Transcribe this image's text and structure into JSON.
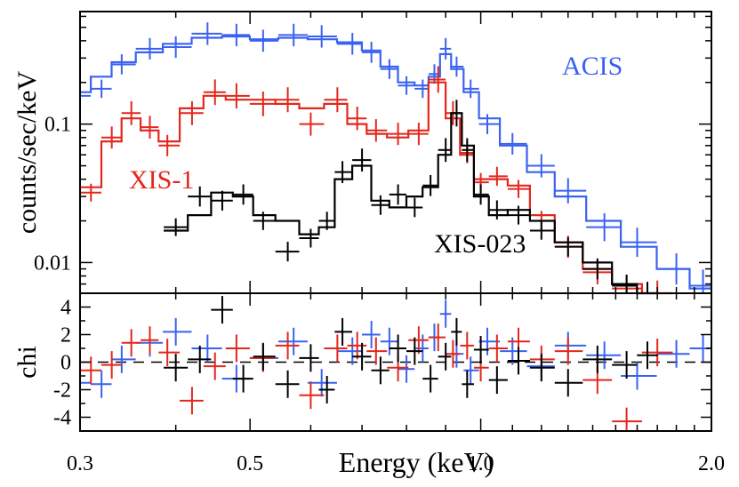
{
  "chart_data": {
    "type": "line",
    "x_scale": "log",
    "xlabel": "Energy (keV)",
    "x_ticks": [
      0.3,
      0.5,
      1.0,
      2.0
    ],
    "x_tick_labels": [
      "0.3",
      "0.5",
      "1.0",
      "2.0"
    ],
    "xlim": [
      0.3,
      2.0
    ],
    "panels": [
      {
        "name": "spectrum",
        "y_scale": "log",
        "ylabel": "counts/sec/keV",
        "ylim": [
          0.006,
          0.65
        ],
        "y_ticks": [
          0.01,
          0.1
        ],
        "y_tick_labels": [
          "0.01",
          "0.1"
        ],
        "series": [
          {
            "name": "ACIS",
            "color": "#3a62f0",
            "label_position": "right",
            "x": [
              0.3,
              0.32,
              0.34,
              0.37,
              0.4,
              0.44,
              0.48,
              0.52,
              0.57,
              0.62,
              0.68,
              0.72,
              0.76,
              0.8,
              0.84,
              0.87,
              0.9,
              0.93,
              0.97,
              1.02,
              1.1,
              1.2,
              1.3,
              1.45,
              1.6,
              1.8,
              1.95
            ],
            "model": [
              0.17,
              0.22,
              0.28,
              0.33,
              0.38,
              0.42,
              0.43,
              0.41,
              0.42,
              0.41,
              0.39,
              0.34,
              0.26,
              0.2,
              0.19,
              0.22,
              0.32,
              0.25,
              0.17,
              0.11,
              0.07,
              0.045,
              0.03,
              0.02,
              0.013,
              0.009,
              0.0065
            ],
            "data": [
              0.16,
              0.18,
              0.27,
              0.35,
              0.36,
              0.45,
              0.44,
              0.4,
              0.44,
              0.43,
              0.38,
              0.33,
              0.25,
              0.19,
              0.18,
              0.23,
              0.35,
              0.26,
              0.18,
              0.1,
              0.072,
              0.05,
              0.033,
              0.018,
              0.014,
              0.009,
              0.0068
            ]
          },
          {
            "name": "XIS-1",
            "color": "#e3271d",
            "label_position": "left",
            "x": [
              0.31,
              0.33,
              0.35,
              0.37,
              0.39,
              0.42,
              0.45,
              0.48,
              0.52,
              0.56,
              0.6,
              0.65,
              0.69,
              0.73,
              0.78,
              0.83,
              0.88,
              0.92,
              0.96,
              1.0,
              1.05,
              1.12,
              1.2,
              1.3,
              1.42,
              1.55,
              1.7
            ],
            "model": [
              0.035,
              0.075,
              0.11,
              0.09,
              0.075,
              0.13,
              0.16,
              0.15,
              0.15,
              0.14,
              0.13,
              0.14,
              0.1,
              0.085,
              0.08,
              0.09,
              0.2,
              0.11,
              0.06,
              0.04,
              0.04,
              0.036,
              0.022,
              0.014,
              0.009,
              0.007,
              0.006
            ],
            "data": [
              0.032,
              0.08,
              0.12,
              0.095,
              0.07,
              0.12,
              0.17,
              0.16,
              0.14,
              0.15,
              0.1,
              0.15,
              0.11,
              0.09,
              0.085,
              0.085,
              0.21,
              0.12,
              0.062,
              0.038,
              0.042,
              0.034,
              0.02,
              0.013,
              0.0085,
              0.0065,
              0.006
            ]
          },
          {
            "name": "XIS-023",
            "color": "#000000",
            "label_position": "center-right",
            "x": [
              0.4,
              0.43,
              0.46,
              0.49,
              0.52,
              0.56,
              0.6,
              0.63,
              0.66,
              0.7,
              0.74,
              0.78,
              0.82,
              0.86,
              0.9,
              0.93,
              0.96,
              1.0,
              1.05,
              1.12,
              1.2,
              1.3,
              1.42,
              1.55,
              1.65
            ],
            "model": [
              0.017,
              0.022,
              0.032,
              0.03,
              0.022,
              0.02,
              0.016,
              0.018,
              0.04,
              0.05,
              0.028,
              0.025,
              0.03,
              0.035,
              0.06,
              0.12,
              0.07,
              0.03,
              0.022,
              0.024,
              0.02,
              0.014,
              0.01,
              0.007,
              0.006
            ],
            "data": [
              0.018,
              0.03,
              0.028,
              0.031,
              0.02,
              0.012,
              0.015,
              0.02,
              0.045,
              0.055,
              0.026,
              0.031,
              0.025,
              0.036,
              0.065,
              0.12,
              0.065,
              0.031,
              0.024,
              0.022,
              0.017,
              0.013,
              0.009,
              0.0068,
              0.006
            ]
          }
        ]
      },
      {
        "name": "residuals",
        "y_scale": "linear",
        "ylabel": "chi",
        "ylim": [
          -5,
          5
        ],
        "y_ticks": [
          -4,
          -2,
          0,
          2,
          4
        ],
        "y_tick_labels": [
          "-4",
          "-2",
          "0",
          "2",
          "4"
        ],
        "series": [
          {
            "name": "ACIS",
            "color": "#3a62f0",
            "x": [
              0.3,
              0.32,
              0.34,
              0.37,
              0.4,
              0.44,
              0.48,
              0.52,
              0.57,
              0.62,
              0.68,
              0.72,
              0.76,
              0.8,
              0.84,
              0.87,
              0.9,
              0.93,
              0.97,
              1.02,
              1.1,
              1.2,
              1.3,
              1.45,
              1.6,
              1.8,
              1.95
            ],
            "values": [
              -1.5,
              -1.6,
              0.2,
              1.4,
              2.2,
              1.0,
              -1.2,
              0.3,
              1.5,
              -1.5,
              0.8,
              2.0,
              1.5,
              -0.5,
              1.0,
              1.8,
              3.5,
              0.6,
              -0.6,
              1.5,
              0.8,
              -0.3,
              1.2,
              0.5,
              -1.0,
              0.6,
              1.0
            ]
          },
          {
            "name": "XIS-1",
            "color": "#e3271d",
            "x": [
              0.31,
              0.33,
              0.35,
              0.37,
              0.39,
              0.42,
              0.45,
              0.48,
              0.52,
              0.56,
              0.6,
              0.65,
              0.69,
              0.73,
              0.78,
              0.83,
              0.88,
              0.92,
              0.96,
              1.0,
              1.05,
              1.12,
              1.2,
              1.3,
              1.42,
              1.55,
              1.7
            ],
            "values": [
              -0.6,
              -0.2,
              1.4,
              1.6,
              0.7,
              -2.8,
              -0.3,
              1.0,
              0.3,
              1.2,
              -2.4,
              1.0,
              1.2,
              0.8,
              -0.4,
              1.6,
              1.8,
              0.6,
              1.2,
              -0.4,
              1.0,
              1.5,
              0.2,
              0.8,
              -1.3,
              -4.3,
              0.7
            ]
          },
          {
            "name": "XIS-023",
            "color": "#000000",
            "x": [
              0.4,
              0.43,
              0.46,
              0.49,
              0.52,
              0.56,
              0.6,
              0.63,
              0.66,
              0.7,
              0.74,
              0.78,
              0.82,
              0.86,
              0.9,
              0.93,
              0.96,
              1.0,
              1.05,
              1.12,
              1.2,
              1.3,
              1.42,
              1.55,
              1.65
            ],
            "values": [
              -0.4,
              0.2,
              3.8,
              -1.2,
              0.4,
              -1.6,
              0.3,
              -2.0,
              2.2,
              0.4,
              -0.6,
              1.0,
              0.8,
              -1.2,
              0.4,
              2.2,
              -1.6,
              0.9,
              -1.3,
              0.1,
              -0.4,
              -1.5,
              0.2,
              -0.2,
              0.5
            ]
          }
        ]
      }
    ]
  }
}
